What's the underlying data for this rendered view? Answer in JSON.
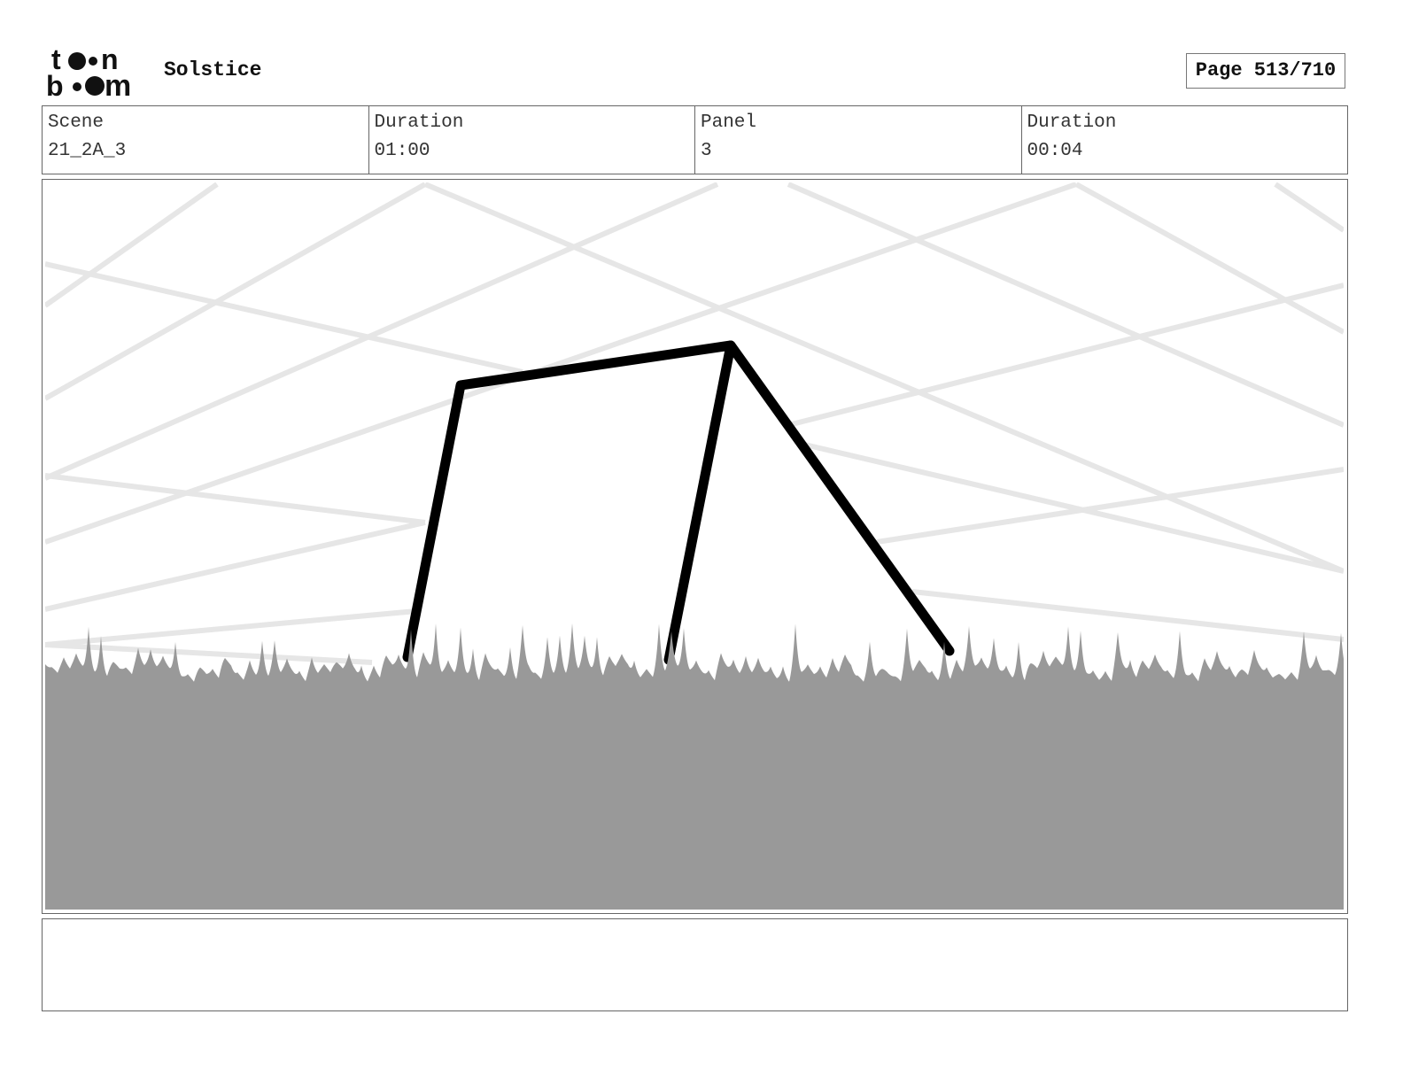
{
  "header": {
    "logo_text": "toon boom",
    "project_title": "Solstice",
    "page_label": "Page 513/710"
  },
  "info": {
    "scene_label": "Scene",
    "scene_value": "21_2A_3",
    "scene_duration_label": "Duration",
    "scene_duration_value": "01:00",
    "panel_label": "Panel",
    "panel_value": "3",
    "panel_duration_label": "Duration",
    "panel_duration_value": "00:04"
  },
  "colors": {
    "grass": "#999999",
    "background_lines": "#e6e6e6",
    "frame_stroke": "#000000"
  },
  "caption": {
    "text": ""
  }
}
